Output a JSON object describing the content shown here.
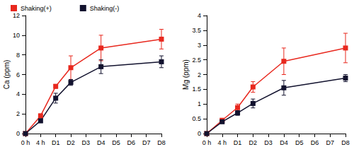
{
  "chart_data": [
    {
      "type": "line",
      "y_label": "Ca (ppm)",
      "categories": [
        "0 h",
        "4 h",
        "D1",
        "D2",
        "D3",
        "D4",
        "D5",
        "D6",
        "D7",
        "D8"
      ],
      "series": [
        {
          "name": "Shaking(+)",
          "color": "#e8281e",
          "values": [
            0,
            1.8,
            4.8,
            6.7,
            null,
            8.7,
            null,
            null,
            null,
            9.6
          ],
          "errors": [
            0,
            0.2,
            0.2,
            1.2,
            null,
            1.3,
            null,
            null,
            null,
            1.0
          ]
        },
        {
          "name": "Shaking(-)",
          "color": "#12122e",
          "values": [
            0,
            1.3,
            3.6,
            5.2,
            null,
            6.8,
            null,
            null,
            null,
            7.3
          ],
          "errors": [
            0,
            0.2,
            0.5,
            0.3,
            null,
            0.7,
            null,
            null,
            null,
            0.6
          ]
        }
      ],
      "ylim": [
        0,
        12
      ],
      "yticks": [
        0,
        2,
        4,
        6,
        8,
        10,
        12
      ],
      "grid": false,
      "legend": "upper left",
      "marker": "square"
    },
    {
      "type": "line",
      "y_label": "Mg (ppm)",
      "categories": [
        "0 h",
        "4 h",
        "D1",
        "D2",
        "D3",
        "D4",
        "D5",
        "D6",
        "D7",
        "D8"
      ],
      "series": [
        {
          "name": "Shaking(+)",
          "color": "#e8281e",
          "values": [
            0,
            0.45,
            0.88,
            1.58,
            null,
            2.45,
            null,
            null,
            null,
            2.9
          ],
          "errors": [
            0,
            0.05,
            0.12,
            0.18,
            null,
            0.45,
            null,
            null,
            null,
            0.5
          ]
        },
        {
          "name": "Shaking(-)",
          "color": "#12122e",
          "values": [
            0,
            0.4,
            0.7,
            1.02,
            null,
            1.55,
            null,
            null,
            null,
            1.88
          ],
          "errors": [
            0,
            0.03,
            0.08,
            0.15,
            null,
            0.25,
            null,
            null,
            null,
            0.12
          ]
        }
      ],
      "ylim": [
        0,
        4
      ],
      "yticks": [
        0,
        0.5,
        1,
        1.5,
        2,
        2.5,
        3,
        3.5,
        4
      ],
      "grid": false,
      "legend": "upper left",
      "marker": "square"
    }
  ]
}
